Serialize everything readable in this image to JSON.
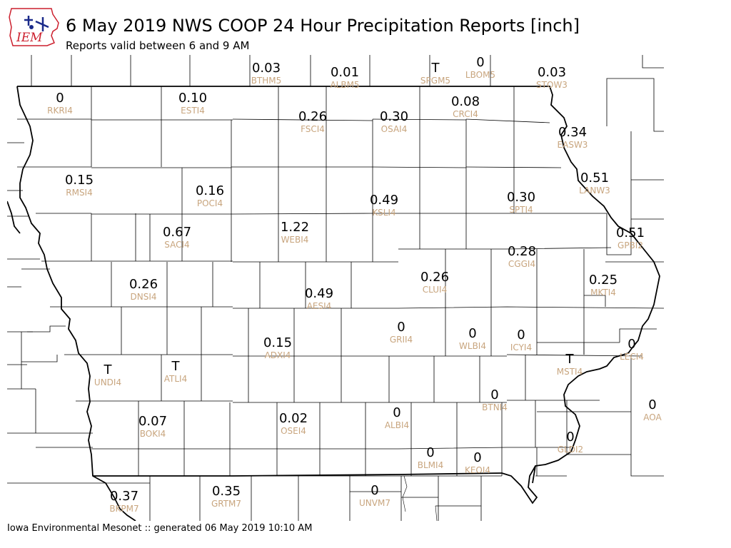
{
  "header": {
    "logo_text": "IEM",
    "title": "6 May 2019 NWS COOP 24 Hour Precipitation Reports [inch]",
    "subtitle": "Reports valid between 6 and 9 AM"
  },
  "footer": {
    "text": "Iowa Environmental Mesonet :: generated 06 May 2019 10:10 AM"
  },
  "colors": {
    "value": "#000000",
    "station": "#c8a57e",
    "logo_red": "#cc1f2d",
    "logo_blue": "#1a2a8a"
  },
  "stations": [
    {
      "id": "BTHM5",
      "value": "0.03"
    },
    {
      "id": "ALBM5",
      "value": "0.01"
    },
    {
      "id": "SPGM5",
      "value": "T"
    },
    {
      "id": "LBOM5",
      "value": "0"
    },
    {
      "id": "STOW3",
      "value": "0.03"
    },
    {
      "id": "RKRI4",
      "value": "0"
    },
    {
      "id": "ESTI4",
      "value": "0.10"
    },
    {
      "id": "FSCI4",
      "value": "0.26"
    },
    {
      "id": "OSAI4",
      "value": "0.30"
    },
    {
      "id": "CRCI4",
      "value": "0.08"
    },
    {
      "id": "EASW3",
      "value": "0.34"
    },
    {
      "id": "LANW3",
      "value": "0.51"
    },
    {
      "id": "RMSI4",
      "value": "0.15"
    },
    {
      "id": "POCI4",
      "value": "0.16"
    },
    {
      "id": "KSLI4",
      "value": "0.49"
    },
    {
      "id": "SPTI4",
      "value": "0.30"
    },
    {
      "id": "SACI4",
      "value": "0.67"
    },
    {
      "id": "WEBI4",
      "value": "1.22"
    },
    {
      "id": "GPBI2",
      "value": "0.51"
    },
    {
      "id": "CGGI4",
      "value": "0.28"
    },
    {
      "id": "DNSI4",
      "value": "0.26"
    },
    {
      "id": "CLUI4",
      "value": "0.26"
    },
    {
      "id": "MKTI4",
      "value": "0.25"
    },
    {
      "id": "AESI4",
      "value": "0.49"
    },
    {
      "id": "GRII4",
      "value": "0"
    },
    {
      "id": "WLBI4",
      "value": "0"
    },
    {
      "id": "ICYI4",
      "value": "0"
    },
    {
      "id": "ADXI4",
      "value": "0.15"
    },
    {
      "id": "LECI4",
      "value": "0"
    },
    {
      "id": "UNDI4",
      "value": "T"
    },
    {
      "id": "ATLI4",
      "value": "T"
    },
    {
      "id": "MSTI4",
      "value": "T"
    },
    {
      "id": "BTNI4",
      "value": "0"
    },
    {
      "id": "BOKI4",
      "value": "0.07"
    },
    {
      "id": "OSEI4",
      "value": "0.02"
    },
    {
      "id": "ALBI4",
      "value": "0"
    },
    {
      "id": "AOA",
      "value": "0"
    },
    {
      "id": "GLDI2",
      "value": "0"
    },
    {
      "id": "BLMI4",
      "value": "0"
    },
    {
      "id": "KEOI4",
      "value": "0"
    },
    {
      "id": "BKPM7",
      "value": "0.37"
    },
    {
      "id": "GRTM7",
      "value": "0.35"
    },
    {
      "id": "UNVM7",
      "value": "0"
    }
  ]
}
